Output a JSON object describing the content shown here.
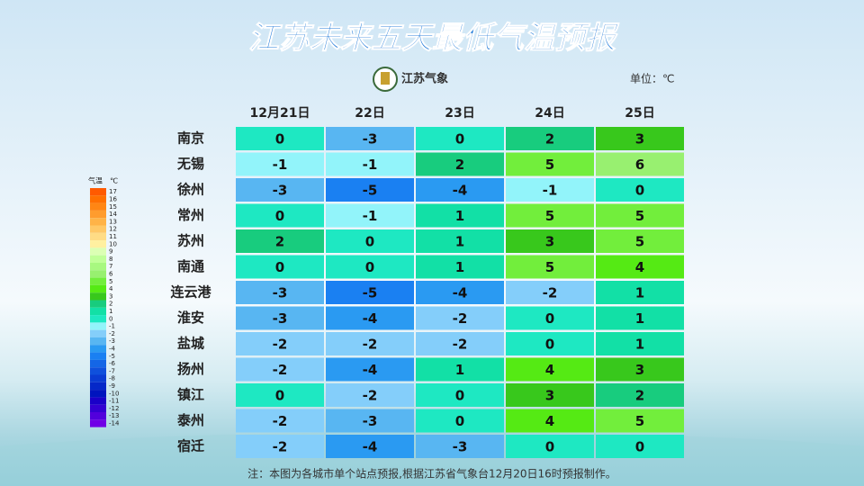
{
  "title": "江苏未来五天最低气温预报",
  "logo": "江苏气象",
  "unit": "单位：℃",
  "table": {
    "columns": [
      "12月21日",
      "22日",
      "23日",
      "24日",
      "25日"
    ],
    "rows": [
      {
        "city": "南京",
        "values": [
          0,
          -3,
          0,
          2,
          3
        ]
      },
      {
        "city": "无锡",
        "values": [
          -1,
          -1,
          2,
          5,
          6
        ]
      },
      {
        "city": "徐州",
        "values": [
          -3,
          -5,
          -4,
          -1,
          0
        ]
      },
      {
        "city": "常州",
        "values": [
          0,
          -1,
          1,
          5,
          5
        ]
      },
      {
        "city": "苏州",
        "values": [
          2,
          0,
          1,
          3,
          5
        ]
      },
      {
        "city": "南通",
        "values": [
          0,
          0,
          1,
          5,
          4
        ]
      },
      {
        "city": "连云港",
        "values": [
          -3,
          -5,
          -4,
          -2,
          1
        ]
      },
      {
        "city": "淮安",
        "values": [
          -3,
          -4,
          -2,
          0,
          1
        ]
      },
      {
        "city": "盐城",
        "values": [
          -2,
          -2,
          -2,
          0,
          1
        ]
      },
      {
        "city": "扬州",
        "values": [
          -2,
          -4,
          1,
          4,
          3
        ]
      },
      {
        "city": "镇江",
        "values": [
          0,
          -2,
          0,
          3,
          2
        ]
      },
      {
        "city": "泰州",
        "values": [
          -2,
          -3,
          0,
          4,
          5
        ]
      },
      {
        "city": "宿迁",
        "values": [
          -2,
          -4,
          -3,
          0,
          0
        ]
      }
    ]
  },
  "legend": {
    "title": "气温",
    "unit": "℃",
    "levels": [
      {
        "value": 17,
        "color": "#ff5a00"
      },
      {
        "value": 16,
        "color": "#ff7000"
      },
      {
        "value": 15,
        "color": "#ff8614"
      },
      {
        "value": 14,
        "color": "#ff9c2e"
      },
      {
        "value": 13,
        "color": "#ffb347"
      },
      {
        "value": 12,
        "color": "#ffc866"
      },
      {
        "value": 11,
        "color": "#ffdc85"
      },
      {
        "value": 10,
        "color": "#fff0a0"
      },
      {
        "value": 9,
        "color": "#dcffb4"
      },
      {
        "value": 8,
        "color": "#c0ff98"
      },
      {
        "value": 7,
        "color": "#a8f880"
      },
      {
        "value": 6,
        "color": "#98f070"
      },
      {
        "value": 5,
        "color": "#72ee3c"
      },
      {
        "value": 4,
        "color": "#55ea14"
      },
      {
        "value": 3,
        "color": "#38c81c"
      },
      {
        "value": 2,
        "color": "#18cc7e"
      },
      {
        "value": 1,
        "color": "#12e0a6"
      },
      {
        "value": 0,
        "color": "#1ee8c2"
      },
      {
        "value": -1,
        "color": "#92f4fa"
      },
      {
        "value": -2,
        "color": "#84cefa"
      },
      {
        "value": -3,
        "color": "#58b6f2"
      },
      {
        "value": -4,
        "color": "#2a9af2"
      },
      {
        "value": -5,
        "color": "#1a80f2"
      },
      {
        "value": -6,
        "color": "#1466e6"
      },
      {
        "value": -7,
        "color": "#0f50dc"
      },
      {
        "value": -8,
        "color": "#0a3cd2"
      },
      {
        "value": -9,
        "color": "#0528c8"
      },
      {
        "value": -10,
        "color": "#0014be"
      },
      {
        "value": -11,
        "color": "#1a00c8"
      },
      {
        "value": -12,
        "color": "#3400d2"
      },
      {
        "value": -13,
        "color": "#5200dc"
      },
      {
        "value": -14,
        "color": "#7000e6"
      }
    ]
  },
  "note": "注：本图为各城市单个站点预报,根据江苏省气象台12月20日16时预报制作。"
}
